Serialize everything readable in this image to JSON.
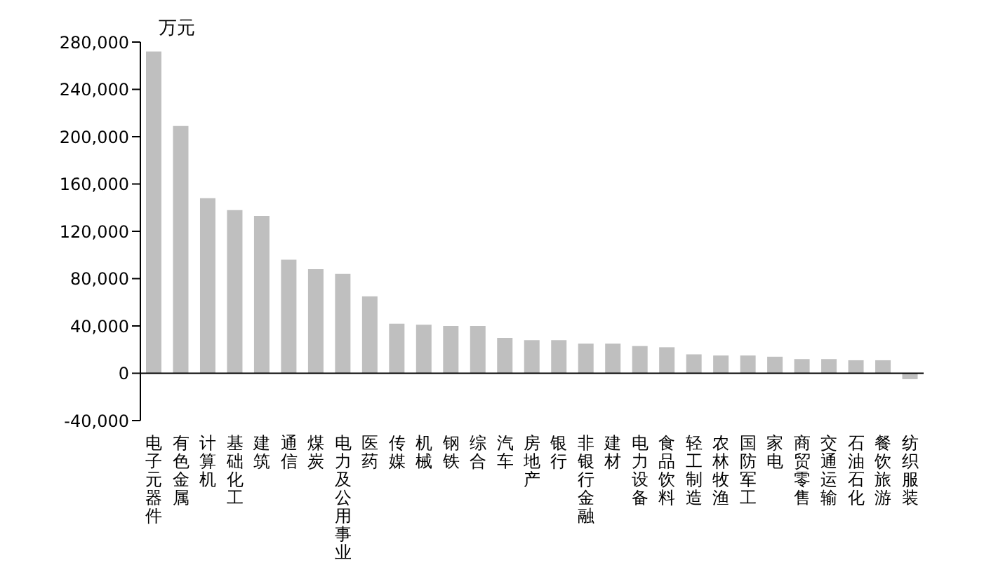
{
  "chart_data": {
    "type": "bar",
    "ylabel": "万元",
    "categories": [
      "电子元器件",
      "有色金属",
      "计算机",
      "基础化工",
      "建筑",
      "通信",
      "煤炭",
      "电力及公用事业",
      "医药",
      "传媒",
      "机械",
      "钢铁",
      "综合",
      "汽车",
      "房地产",
      "银行",
      "非银行金融",
      "建材",
      "电力设备",
      "食品饮料",
      "轻工制造",
      "农林牧渔",
      "国防军工",
      "家电",
      "商贸零售",
      "交通运输",
      "石油石化",
      "餐饮旅游",
      "纺织服装"
    ],
    "values": [
      272000,
      209000,
      148000,
      138000,
      133000,
      96000,
      88000,
      84000,
      65000,
      42000,
      41000,
      40000,
      40000,
      30000,
      28000,
      28000,
      25000,
      25000,
      23000,
      22000,
      16000,
      15000,
      15000,
      14000,
      12000,
      12000,
      11000,
      11000,
      -5000
    ],
    "color": "#bfbfbf",
    "ylim": [
      -40000,
      280000
    ],
    "yticks": [
      {
        "value": -40000,
        "label": "-40,000"
      },
      0,
      {
        "value": 40000,
        "label": "40,000"
      },
      {
        "value": 80000,
        "label": "80,000"
      },
      {
        "value": 120000,
        "label": "120,000"
      },
      {
        "value": 160000,
        "label": "160,000"
      },
      {
        "value": 200000,
        "label": "200,000"
      },
      {
        "value": 240000,
        "label": "240,000"
      },
      {
        "value": 280000,
        "label": "280,000"
      }
    ],
    "legend": false
  }
}
